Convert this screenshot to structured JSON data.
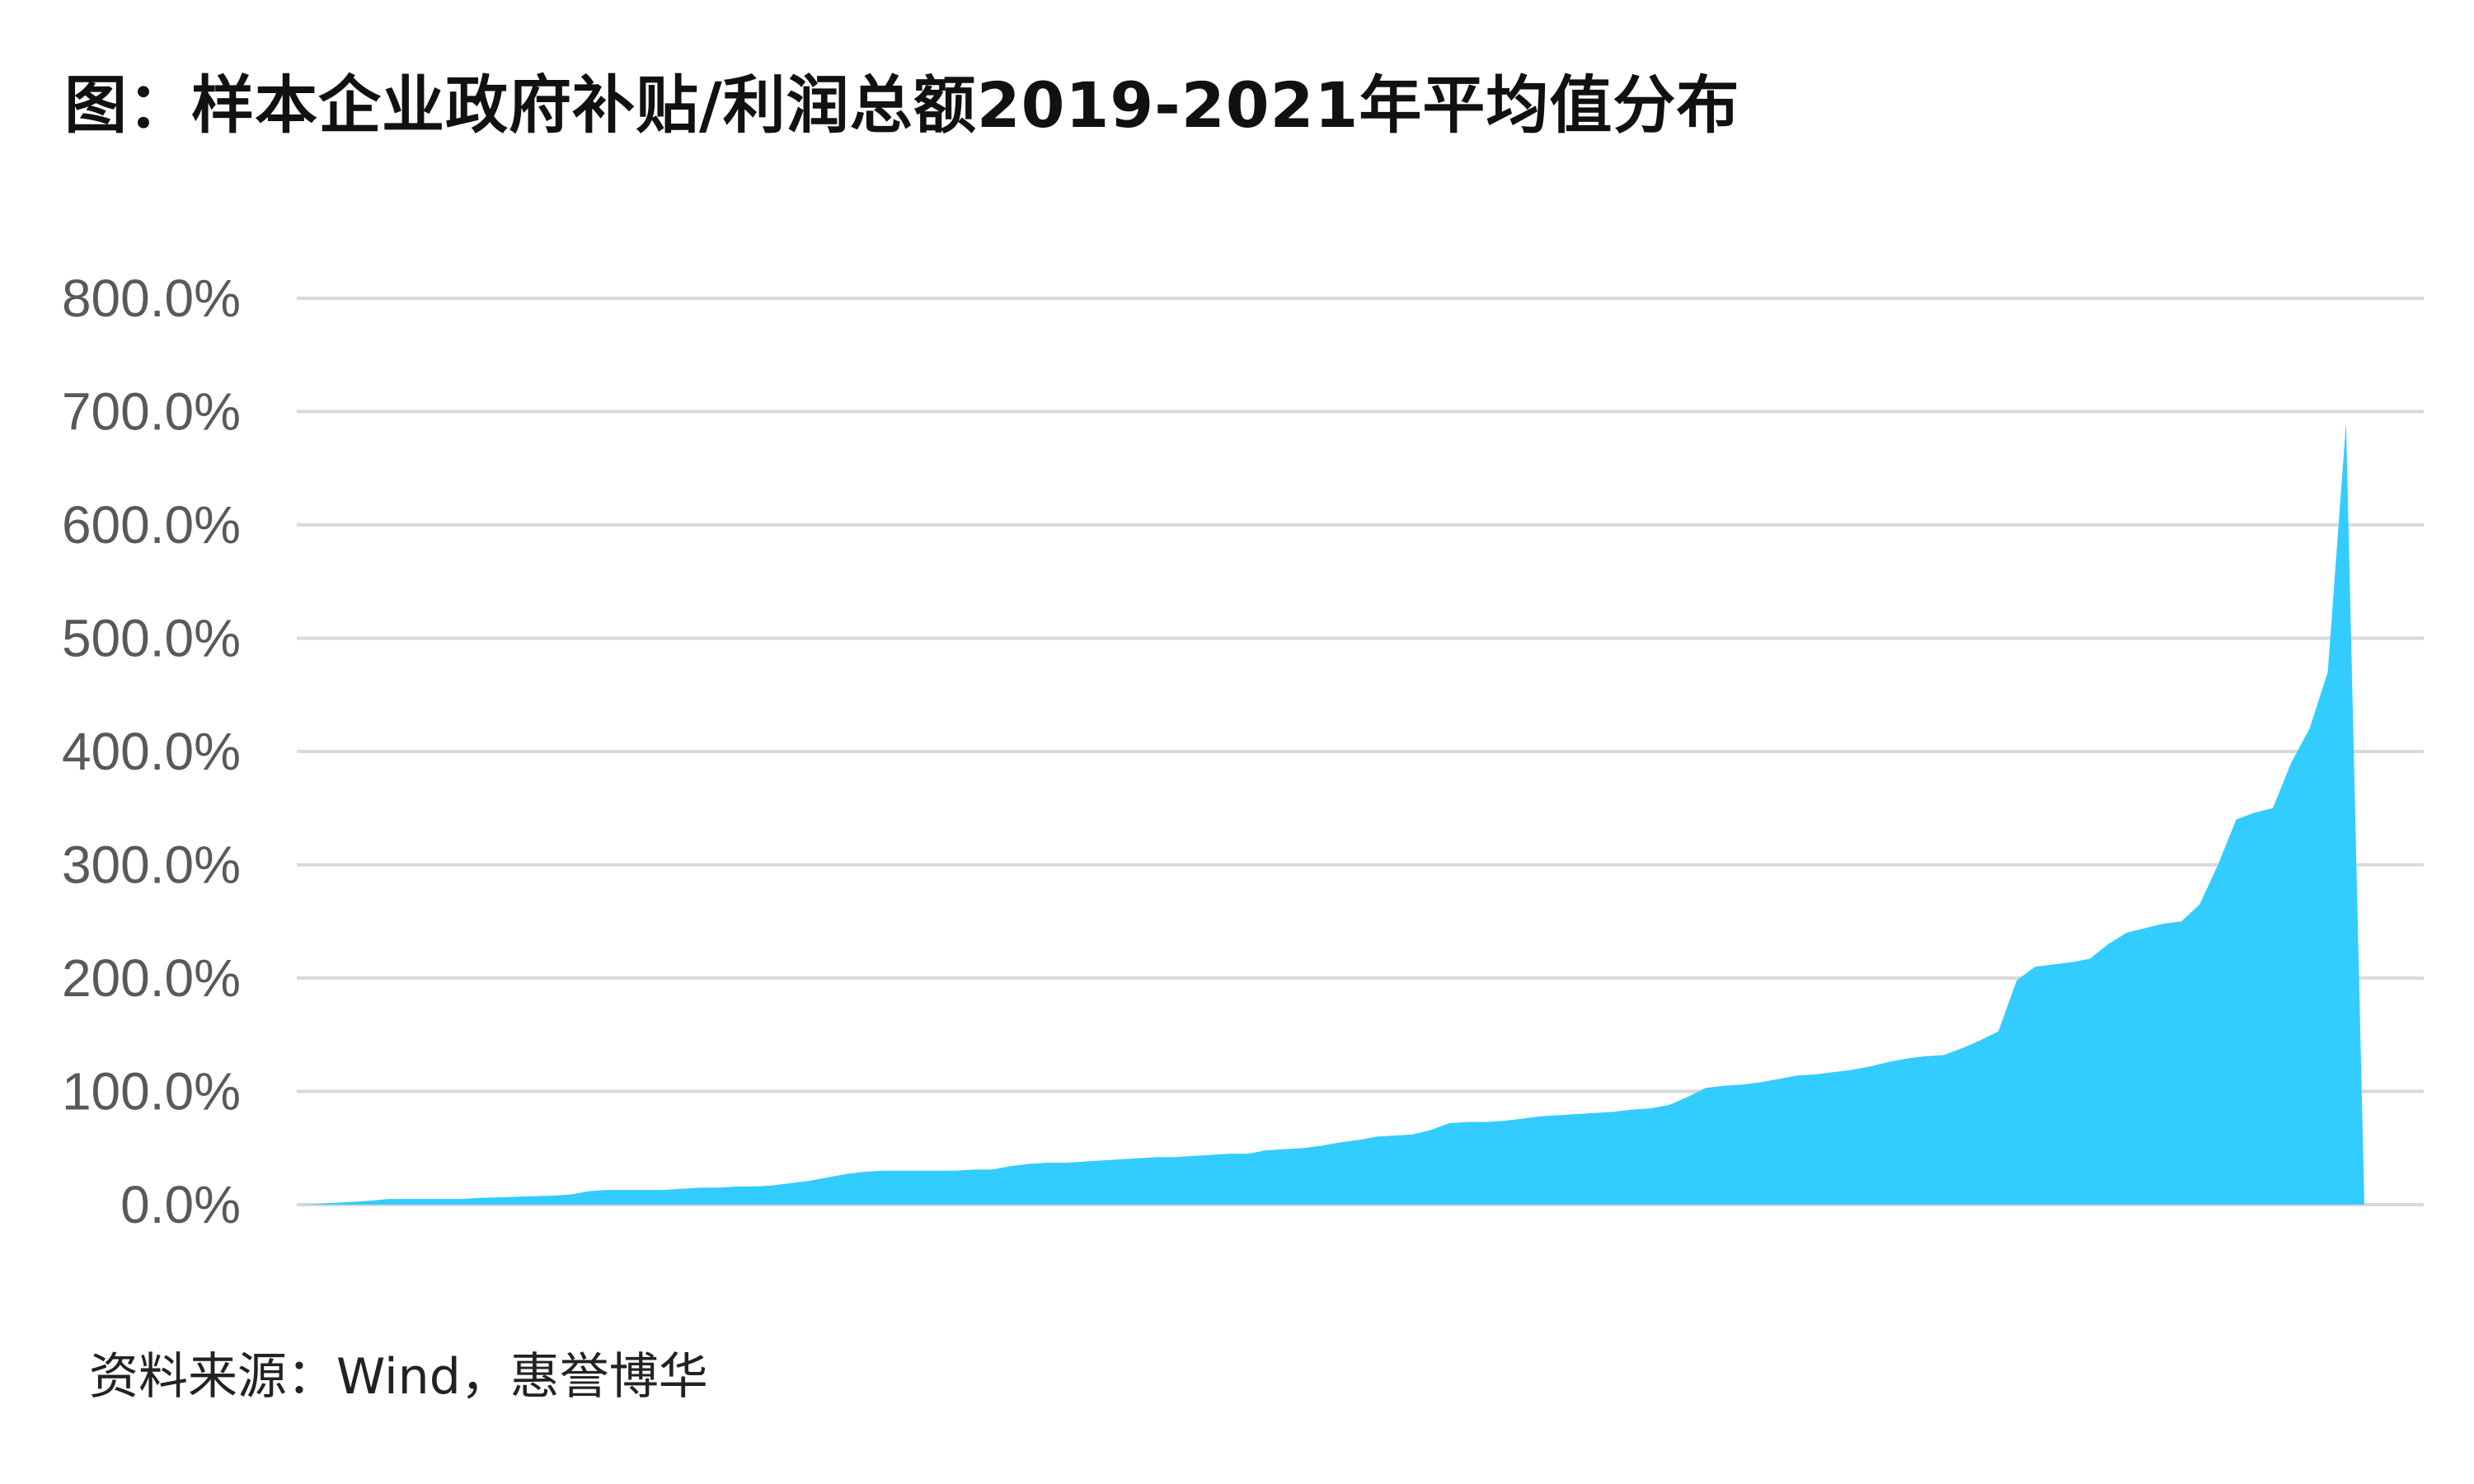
{
  "chart_data": {
    "type": "area",
    "title": "图：样本企业政府补贴/利润总额2019-2021年平均值分布",
    "source": "资料来源：Wind，惠誉博华",
    "xlabel": "",
    "ylabel": "",
    "ylim": [
      0,
      800
    ],
    "yticks": [
      0,
      100,
      200,
      300,
      400,
      500,
      600,
      700,
      800
    ],
    "ytick_labels": [
      "0.0%",
      "100.0%",
      "200.0%",
      "300.0%",
      "400.0%",
      "500.0%",
      "600.0%",
      "700.0%",
      "800.0%"
    ],
    "y_unit": "%",
    "x_ticks_shown": false,
    "grid": true,
    "legend": "none",
    "series": [
      {
        "color": "#33CCFF",
        "values": [
          0,
          0.5,
          1.5,
          2.5,
          3.5,
          5,
          5,
          5,
          5,
          5,
          6,
          6.5,
          7,
          7.5,
          8,
          9,
          12,
          13,
          13,
          13,
          13,
          14,
          15,
          15,
          16,
          16,
          17,
          19,
          21,
          24,
          27,
          29,
          30,
          30,
          30,
          30,
          30,
          31,
          31,
          34,
          36,
          37,
          37,
          38,
          39,
          40,
          41,
          42,
          42,
          43,
          44,
          45,
          45,
          48,
          49,
          50,
          52,
          55,
          57,
          60,
          61,
          62,
          66,
          72,
          73,
          73,
          74,
          76,
          78,
          79,
          80,
          81,
          82,
          84,
          85,
          88,
          95,
          103,
          105,
          106,
          108,
          111,
          114,
          115,
          117,
          119,
          122,
          126,
          129,
          131,
          132,
          138,
          145,
          153,
          198,
          210,
          212,
          214,
          217,
          230,
          240,
          244,
          248,
          250,
          265,
          300,
          340,
          346,
          350,
          390,
          420,
          470,
          690,
          0
        ]
      }
    ]
  }
}
